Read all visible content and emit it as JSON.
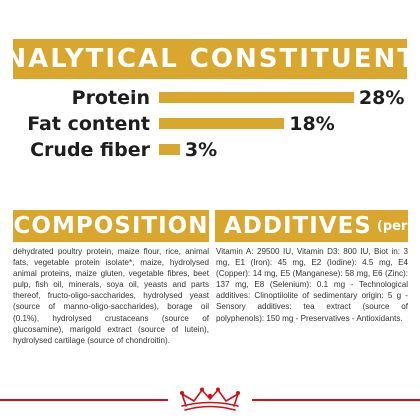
{
  "analytical": {
    "title": "ANALYTICAL CONSTITUENTS",
    "items": [
      {
        "label": "Protein",
        "value": "28%",
        "percent": 28
      },
      {
        "label": "Fat content",
        "value": "18%",
        "percent": 18
      },
      {
        "label": "Crude fiber",
        "value": "3%",
        "percent": 3
      }
    ]
  },
  "composition": {
    "title": "COMPOSITION",
    "text": "dehydrated poultry protein, maize flour, rice, animal fats, vegetable protein isolate*, maize, hydrolysed animal proteins, maize gluten, vegetable fibres, beet pulp, fish oil, minerals, soya oil, yeasts and parts thereof, fructo-oligo-saccharides, hydrolysed yeast (source of manno-oligo-saccharides), borage oil (0.1%), hydrolysed crustaceans (source of glucosamine), marigold extract (source of lutein), hydrolysed cartilage (source of chondroitin)."
  },
  "additives": {
    "title": "ADDITIVES",
    "unit": "(per kg)",
    "text": "Vitamin A: 29500 IU, Vitamin D3: 800 IU, Biot in: 3 mg, E1 (Iron): 45 mg, E2 (Iodine): 4.5 mg, E4 (Copper): 14 mg, E5 (Manganese): 58 mg, E6 (Zinc): 137 mg, E8 (Selenium): 0.1 mg - Technological additives: Clinoptilolite of sedimentary origin: 5 g - Sensory additives: tea extract (source of polyphenols): 150 mg - Preservatives - Antioxidants."
  },
  "colors": {
    "accent": "#d9a62e",
    "brand_red": "#d20f17"
  },
  "footer": {
    "logo_icon": "royal-canin-crown-logo-icon"
  }
}
